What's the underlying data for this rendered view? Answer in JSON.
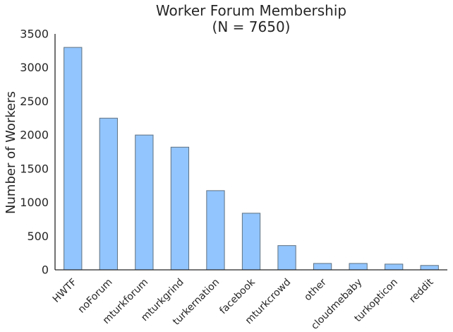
{
  "chart_data": {
    "type": "bar",
    "title": "Worker Forum Membership",
    "subtitle": "(N = 7650)",
    "xlabel": "",
    "ylabel": "Number of Workers",
    "categories": [
      "HWTF",
      "noForum",
      "mturkforum",
      "mturkgrind",
      "turkernation",
      "facebook",
      "mturkcrowd",
      "other",
      "cloudmebaby",
      "turkopticon",
      "reddit"
    ],
    "values": [
      3300,
      2250,
      2000,
      1820,
      1175,
      840,
      360,
      95,
      95,
      85,
      65
    ],
    "ylim": [
      0,
      3500
    ],
    "yticks": [
      0,
      500,
      1000,
      1500,
      2000,
      2500,
      3000,
      3500
    ],
    "grid": false,
    "legend": "none",
    "colors": {
      "bar_fill": "#92c5fd",
      "bar_stroke": "#5f7180",
      "axis": "#262626",
      "text": "#262626"
    }
  }
}
